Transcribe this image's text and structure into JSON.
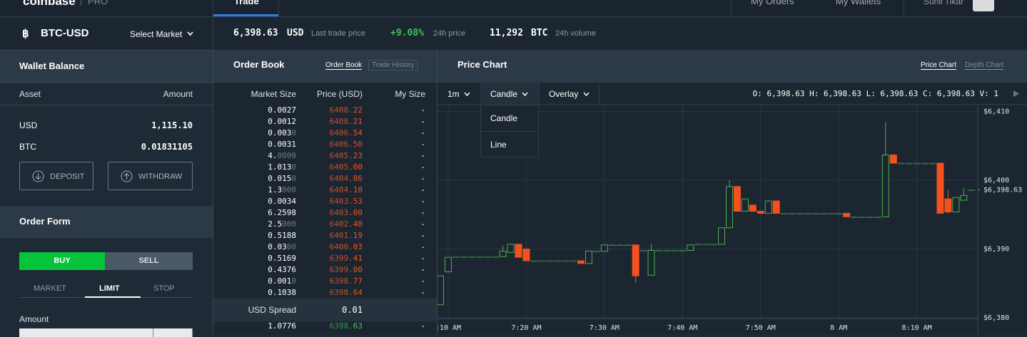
{
  "nav": {
    "logo": "coinbase",
    "product": "PRO",
    "tabs": [
      "Trade",
      "My Orders",
      "My Wallets"
    ],
    "user": "Sunil Tikar"
  },
  "ticker": {
    "pair": "BTC-USD",
    "select": "Select Market",
    "last_price": "6,398.63",
    "last_unit": "USD",
    "last_label": "Last trade price",
    "change": "+9.08%",
    "change_label": "24h price",
    "volume": "11,292",
    "volume_unit": "BTC",
    "volume_label": "24h volume"
  },
  "wallet": {
    "title": "Wallet Balance",
    "columns": [
      "Asset",
      "Amount"
    ],
    "rows": [
      [
        "USD",
        "1,115.10"
      ],
      [
        "BTC",
        "0.01831105"
      ]
    ],
    "buttons": [
      "DEPOSIT",
      "WITHDRAW"
    ]
  },
  "order_form": {
    "title": "Order Form",
    "sides": [
      "BUY",
      "SELL"
    ],
    "types": [
      "MARKET",
      "LIMIT",
      "STOP"
    ],
    "amount_label": "Amount"
  },
  "order_book": {
    "title": "Order Book",
    "tabs": [
      "Order Book",
      "Trade History"
    ],
    "columns": [
      "Market Size",
      "Price (USD)",
      "My Size"
    ],
    "asks": [
      [
        "0.0027",
        "6408.22",
        "-"
      ],
      [
        "0.0012",
        "6408.21",
        "-"
      ],
      [
        "0.0030",
        "6406.54",
        "-"
      ],
      [
        "0.0031",
        "6406.50",
        "-"
      ],
      [
        "4.0000",
        "6405.23",
        "-"
      ],
      [
        "1.0130",
        "6405.00",
        "-"
      ],
      [
        "0.0150",
        "6404.86",
        "-"
      ],
      [
        "1.3000",
        "6404.10",
        "-"
      ],
      [
        "0.0034",
        "6403.53",
        "-"
      ],
      [
        "6.2598",
        "6403.00",
        "-"
      ],
      [
        "2.5000",
        "6402.40",
        "-"
      ],
      [
        "0.5188",
        "6401.19",
        "-"
      ],
      [
        "0.0300",
        "6400.03",
        "-"
      ],
      [
        "0.5169",
        "6399.41",
        "-"
      ],
      [
        "0.4376",
        "6399.00",
        "-"
      ],
      [
        "0.0010",
        "6398.77",
        "-"
      ],
      [
        "0.1038",
        "6398.64",
        "-"
      ]
    ],
    "spread_label": "USD Spread",
    "spread": "0.01",
    "bids": [
      [
        "1.0776",
        "6398.63",
        "-"
      ]
    ]
  },
  "price_chart": {
    "title": "Price Chart",
    "tabs": [
      "Price Chart",
      "Depth Chart"
    ],
    "interval": "1m",
    "style": "Candle",
    "overlay": "Overlay",
    "style_options": [
      "Candle",
      "Line"
    ],
    "ohlc": "O: 6,398.63 H: 6,398.63 L: 6,398.63 C: 6,398.63 V: 1",
    "xlim": [
      -0.37,
      68.8
    ],
    "ylim": [
      6379.9,
      6411.0
    ],
    "yticks": [
      {
        "value": 6380,
        "label": "$6,380"
      },
      {
        "value": 6390,
        "label": "$6,390"
      },
      {
        "value": 6400,
        "label": "$6,400"
      },
      {
        "value": 6410,
        "label": "$6,410"
      }
    ],
    "last": {
      "value": 6398.63,
      "label": "$6,398.63"
    },
    "xticks": [
      {
        "value": 1,
        "label": ":10 AM"
      },
      {
        "value": 11,
        "label": "7:20 AM"
      },
      {
        "value": 21,
        "label": "7:30 AM"
      },
      {
        "value": 31,
        "label": "7:40 AM"
      },
      {
        "value": 41,
        "label": "7:50 AM"
      },
      {
        "value": 51,
        "label": "8 AM"
      },
      {
        "value": 61,
        "label": "8:10 AM"
      }
    ],
    "up_color": "#4caf50",
    "down_color": "#f4511e",
    "candles": [
      [
        6381.9,
        6386.1,
        6381.9,
        6386.1
      ],
      [
        6386.7,
        6388.8,
        6386.7,
        6388.8
      ],
      [
        6388.9,
        6388.9,
        6388.9,
        6388.9
      ],
      [
        6388.9,
        6388.9,
        6388.9,
        6388.9
      ],
      [
        6388.9,
        6388.9,
        6388.9,
        6388.9
      ],
      [
        6388.9,
        6388.9,
        6388.9,
        6388.9
      ],
      [
        6388.9,
        6388.9,
        6388.9,
        6388.9
      ],
      [
        6388.9,
        6388.9,
        6388.9,
        6388.9
      ],
      [
        6388.9,
        6390.5,
        6388.9,
        6389.7
      ],
      [
        6389.5,
        6390.7,
        6389.5,
        6390.7
      ],
      [
        6390.7,
        6390.7,
        6388.8,
        6388.8
      ],
      [
        6390.0,
        6390.0,
        6388.3,
        6388.3
      ],
      [
        6388.3,
        6388.3,
        6388.3,
        6388.3
      ],
      [
        6388.3,
        6388.3,
        6388.3,
        6388.3
      ],
      [
        6388.3,
        6388.3,
        6388.3,
        6388.3
      ],
      [
        6388.3,
        6388.3,
        6388.3,
        6388.3
      ],
      [
        6388.3,
        6388.3,
        6388.3,
        6388.3
      ],
      [
        6388.3,
        6388.3,
        6388.3,
        6388.3
      ],
      [
        6388.3,
        6388.3,
        6387.9,
        6387.9
      ],
      [
        6387.9,
        6389.7,
        6387.9,
        6389.7
      ],
      [
        6389.7,
        6389.7,
        6389.7,
        6389.7
      ],
      [
        6389.7,
        6390.6,
        6389.7,
        6390.6
      ],
      [
        6390.6,
        6390.6,
        6390.6,
        6390.6
      ],
      [
        6390.6,
        6390.6,
        6390.6,
        6390.6
      ],
      [
        6390.6,
        6390.6,
        6390.6,
        6390.6
      ],
      [
        6390.6,
        6390.6,
        6385.1,
        6386.1
      ],
      [
        6389.8,
        6389.8,
        6389.8,
        6389.8
      ],
      [
        6386.2,
        6390.7,
        6386.2,
        6389.8
      ],
      [
        6389.8,
        6389.8,
        6389.8,
        6389.8
      ],
      [
        6389.8,
        6389.8,
        6389.8,
        6389.8
      ],
      [
        6389.8,
        6389.8,
        6389.8,
        6389.8
      ],
      [
        6389.8,
        6389.8,
        6389.8,
        6389.8
      ],
      [
        6389.8,
        6390.6,
        6389.8,
        6390.6
      ],
      [
        6390.7,
        6390.7,
        6390.7,
        6390.7
      ],
      [
        6390.7,
        6390.7,
        6390.7,
        6390.7
      ],
      [
        6390.7,
        6390.7,
        6390.7,
        6390.7
      ],
      [
        6390.7,
        6393.1,
        6390.7,
        6393.1
      ],
      [
        6393.1,
        6400.0,
        6393.1,
        6399.1
      ],
      [
        6399.1,
        6399.1,
        6395.5,
        6395.5
      ],
      [
        6395.5,
        6397.3,
        6395.5,
        6397.3
      ],
      [
        6396.4,
        6396.4,
        6395.5,
        6395.5
      ],
      [
        6395.5,
        6395.5,
        6395.2,
        6395.2
      ],
      [
        6395.2,
        6397.0,
        6395.2,
        6397.0
      ],
      [
        6397.0,
        6397.0,
        6395.2,
        6395.2
      ],
      [
        6395.2,
        6395.2,
        6395.2,
        6395.2
      ],
      [
        6395.2,
        6395.2,
        6395.2,
        6395.2
      ],
      [
        6395.2,
        6395.2,
        6395.2,
        6395.2
      ],
      [
        6395.2,
        6395.2,
        6395.2,
        6395.2
      ],
      [
        6395.2,
        6395.2,
        6395.2,
        6395.2
      ],
      [
        6395.2,
        6395.2,
        6395.2,
        6395.2
      ],
      [
        6395.2,
        6395.2,
        6395.2,
        6395.2
      ],
      [
        6395.2,
        6395.2,
        6395.2,
        6395.2
      ],
      [
        6395.2,
        6395.2,
        6394.7,
        6394.7
      ],
      [
        6394.7,
        6394.7,
        6394.7,
        6394.7
      ],
      [
        6394.7,
        6394.7,
        6394.7,
        6394.7
      ],
      [
        6394.7,
        6394.7,
        6394.7,
        6394.7
      ],
      [
        6394.7,
        6394.7,
        6394.7,
        6394.7
      ],
      [
        6394.7,
        6408.5,
        6394.7,
        6403.7
      ],
      [
        6403.7,
        6403.7,
        6402.5,
        6402.5
      ],
      [
        6402.5,
        6402.5,
        6402.5,
        6402.5
      ],
      [
        6402.5,
        6402.5,
        6402.5,
        6402.5
      ],
      [
        6402.5,
        6402.5,
        6402.5,
        6402.5
      ],
      [
        6402.5,
        6402.5,
        6402.5,
        6402.5
      ],
      [
        6402.5,
        6402.5,
        6402.5,
        6402.5
      ],
      [
        6402.5,
        6402.5,
        6395.2,
        6395.2
      ],
      [
        6397.3,
        6398.6,
        6395.2,
        6395.4
      ],
      [
        6395.4,
        6397.5,
        6395.4,
        6397.5
      ],
      [
        6397.1,
        6398.8,
        6397.1,
        6397.8
      ],
      [
        6398.6,
        6398.6,
        6398.6,
        6398.6
      ]
    ]
  }
}
